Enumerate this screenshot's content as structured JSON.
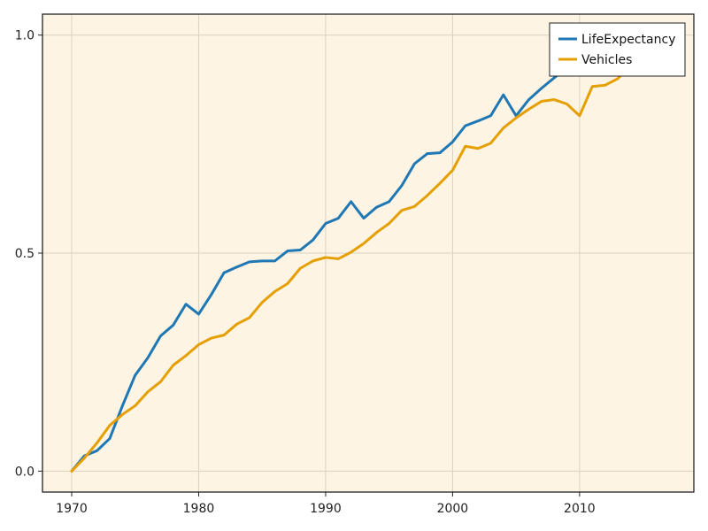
{
  "chart_data": {
    "type": "line",
    "title": "",
    "xlabel": "",
    "ylabel": "",
    "xlim": [
      1967.7,
      2019.0
    ],
    "ylim": [
      -0.048,
      1.048
    ],
    "x_ticks": [
      1970,
      1980,
      1990,
      2000,
      2010
    ],
    "x_tick_labels": [
      "1970",
      "1980",
      "1990",
      "2000",
      "2010"
    ],
    "y_ticks": [
      0.0,
      0.5,
      1.0
    ],
    "y_tick_labels": [
      "0.0",
      "0.5",
      "1.0"
    ],
    "grid": true,
    "legend_position": "top-right",
    "background": "#fdf4e3",
    "series": [
      {
        "name": "LifeExpectancy",
        "color": "#1f77b4",
        "x": [
          1970,
          1971,
          1972,
          1973,
          1974,
          1975,
          1976,
          1977,
          1978,
          1979,
          1980,
          1981,
          1982,
          1983,
          1984,
          1985,
          1986,
          1987,
          1988,
          1989,
          1990,
          1991,
          1992,
          1993,
          1994,
          1995,
          1996,
          1997,
          1998,
          1999,
          2000,
          2001,
          2002,
          2003,
          2004,
          2005,
          2006,
          2007,
          2008,
          2009,
          2010,
          2011,
          2012,
          2013,
          2014
        ],
        "values": [
          0.0,
          0.035,
          0.047,
          0.075,
          0.15,
          0.22,
          0.26,
          0.31,
          0.335,
          0.383,
          0.36,
          0.405,
          0.455,
          0.468,
          0.48,
          0.482,
          0.482,
          0.505,
          0.507,
          0.53,
          0.568,
          0.58,
          0.618,
          0.58,
          0.605,
          0.618,
          0.655,
          0.705,
          0.728,
          0.73,
          0.755,
          0.792,
          0.803,
          0.815,
          0.863,
          0.815,
          0.852,
          0.878,
          0.902,
          0.925,
          0.945,
          0.962,
          0.975,
          0.99,
          1.0
        ]
      },
      {
        "name": "Vehicles",
        "color": "#e69f00",
        "x": [
          1970,
          1971,
          1972,
          1973,
          1974,
          1975,
          1976,
          1977,
          1978,
          1979,
          1980,
          1981,
          1982,
          1983,
          1984,
          1985,
          1986,
          1987,
          1988,
          1989,
          1990,
          1991,
          1992,
          1993,
          1994,
          1995,
          1996,
          1997,
          1998,
          1999,
          2000,
          2001,
          2002,
          2003,
          2004,
          2005,
          2006,
          2007,
          2008,
          2009,
          2010,
          2011,
          2012,
          2013,
          2014
        ],
        "values": [
          0.0,
          0.03,
          0.065,
          0.105,
          0.13,
          0.15,
          0.182,
          0.205,
          0.243,
          0.265,
          0.29,
          0.305,
          0.312,
          0.337,
          0.352,
          0.387,
          0.412,
          0.43,
          0.465,
          0.482,
          0.49,
          0.487,
          0.502,
          0.522,
          0.547,
          0.568,
          0.598,
          0.607,
          0.632,
          0.66,
          0.69,
          0.745,
          0.74,
          0.752,
          0.787,
          0.81,
          0.83,
          0.848,
          0.852,
          0.842,
          0.815,
          0.882,
          0.885,
          0.9,
          0.93
        ]
      }
    ]
  }
}
